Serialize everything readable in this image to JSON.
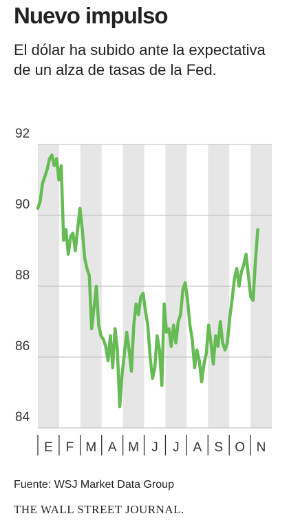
{
  "chart_data": {
    "type": "line",
    "title": "Nuevo impulso",
    "subtitle": "El dólar ha subido ante la expectativa de un alza de tasas de la Fed.",
    "source": "Fuente: WSJ Market Data Group",
    "publisher": "THE WALL STREET JOURNAL.",
    "x": [
      0,
      0.11,
      0.22,
      0.33,
      0.44,
      0.55,
      0.66,
      0.77,
      0.88,
      0.99,
      1.1,
      1.21,
      1.32,
      1.43,
      1.54,
      1.65,
      1.76,
      1.87,
      1.98,
      2.09,
      2.2,
      2.31,
      2.42,
      2.53,
      2.64,
      2.75,
      2.86,
      2.97,
      3.08,
      3.19,
      3.3,
      3.41,
      3.52,
      3.63,
      3.74,
      3.85,
      3.96,
      4.07,
      4.18,
      4.29,
      4.4,
      4.51,
      4.62,
      4.73,
      4.84,
      4.95,
      5.06,
      5.17,
      5.28,
      5.39,
      5.5,
      5.61,
      5.72,
      5.83,
      5.94,
      6.05,
      6.16,
      6.27,
      6.38,
      6.49,
      6.6,
      6.71,
      6.82,
      6.93,
      7.04,
      7.15,
      7.26,
      7.37,
      7.48,
      7.59,
      7.7,
      7.81,
      7.92,
      8.03,
      8.14,
      8.25,
      8.36,
      8.47,
      8.58,
      8.69,
      8.8,
      8.91,
      9.02,
      9.13,
      9.24,
      9.35,
      9.46,
      9.57,
      9.68,
      9.79,
      9.9,
      10.01,
      10.12,
      10.23,
      10.34
    ],
    "series": [
      {
        "color": "#66bb55",
        "values": [
          90.2,
          90.4,
          90.9,
          91.1,
          91.3,
          91.6,
          91.7,
          91.4,
          91.6,
          91.0,
          91.4,
          89.3,
          89.6,
          88.9,
          89.4,
          89.5,
          89.0,
          89.6,
          90.2,
          89.6,
          88.8,
          88.5,
          88.3,
          86.8,
          87.4,
          88.0,
          86.9,
          86.6,
          86.5,
          86.3,
          85.9,
          86.6,
          85.7,
          86.8,
          86.2,
          84.6,
          85.5,
          86.1,
          86.7,
          86.2,
          85.6,
          86.9,
          87.5,
          87.2,
          87.7,
          87.8,
          87.3,
          86.9,
          86.0,
          85.4,
          85.7,
          86.6,
          86.2,
          85.2,
          87.5,
          86.7,
          86.8,
          86.3,
          86.9,
          86.4,
          87.0,
          87.2,
          87.9,
          88.1,
          87.6,
          86.9,
          86.5,
          85.7,
          86.2,
          85.9,
          85.3,
          85.8,
          86.1,
          86.9,
          86.4,
          85.8,
          86.6,
          86.3,
          87.0,
          86.4,
          86.2,
          86.4,
          87.1,
          87.6,
          88.2,
          88.5,
          88.0,
          88.4,
          88.6,
          88.9,
          88.3,
          87.7,
          87.6,
          88.7,
          89.6
        ]
      }
    ],
    "xlim": [
      0,
      11
    ],
    "xticks": [
      {
        "value": 0.5,
        "label": "E"
      },
      {
        "value": 1.5,
        "label": "F"
      },
      {
        "value": 2.5,
        "label": "M"
      },
      {
        "value": 3.5,
        "label": "A"
      },
      {
        "value": 4.5,
        "label": "M"
      },
      {
        "value": 5.5,
        "label": "J"
      },
      {
        "value": 6.5,
        "label": "J"
      },
      {
        "value": 7.5,
        "label": "A"
      },
      {
        "value": 8.5,
        "label": "S"
      },
      {
        "value": 9.5,
        "label": "O"
      },
      {
        "value": 10.5,
        "label": "N"
      }
    ],
    "ylim": [
      84,
      92
    ],
    "yticks": [
      84,
      86,
      88,
      90,
      92
    ],
    "grid": true,
    "band_color": "#e6e6e6"
  }
}
